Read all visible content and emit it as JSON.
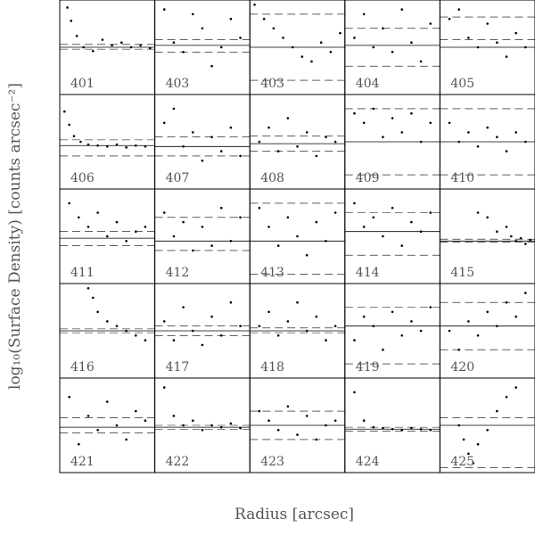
{
  "chart_data": {
    "type": "scatter",
    "xlabel": "Radius [arcsec]",
    "ylabel": "log₁₀(Surface Density) [counts arcsec⁻²]",
    "xlim": [
      0,
      1
    ],
    "ylim": [
      0,
      1
    ],
    "color": "#000000",
    "panels": [
      {
        "label": "401",
        "x": [
          0.08,
          0.12,
          0.18,
          0.25,
          0.35,
          0.45,
          0.55,
          0.65,
          0.75,
          0.85,
          0.95
        ],
        "y": [
          0.92,
          0.78,
          0.62,
          0.5,
          0.46,
          0.58,
          0.52,
          0.55,
          0.5,
          0.52,
          0.49
        ],
        "level": 0.5,
        "band": [
          0.48,
          0.53
        ]
      },
      {
        "label": "403",
        "x": [
          0.1,
          0.2,
          0.3,
          0.4,
          0.5,
          0.6,
          0.7,
          0.8,
          0.9
        ],
        "y": [
          0.9,
          0.55,
          0.45,
          0.85,
          0.7,
          0.3,
          0.5,
          0.8,
          0.6
        ],
        "level": 0.52,
        "band": [
          0.45,
          0.58
        ]
      },
      {
        "label": "403",
        "x": [
          0.05,
          0.15,
          0.25,
          0.35,
          0.45,
          0.55,
          0.65,
          0.75,
          0.85,
          0.95
        ],
        "y": [
          0.95,
          0.8,
          0.7,
          0.6,
          0.5,
          0.4,
          0.35,
          0.55,
          0.45,
          0.65
        ],
        "level": 0.5,
        "band": [
          0.15,
          0.85
        ]
      },
      {
        "label": "404",
        "x": [
          0.1,
          0.2,
          0.3,
          0.4,
          0.5,
          0.6,
          0.7,
          0.8,
          0.9
        ],
        "y": [
          0.6,
          0.85,
          0.5,
          0.7,
          0.45,
          0.9,
          0.55,
          0.35,
          0.75
        ],
        "level": 0.52,
        "band": [
          0.3,
          0.7
        ]
      },
      {
        "label": "405",
        "x": [
          0.1,
          0.2,
          0.3,
          0.4,
          0.5,
          0.6,
          0.7,
          0.8,
          0.9
        ],
        "y": [
          0.8,
          0.9,
          0.6,
          0.5,
          0.75,
          0.55,
          0.4,
          0.65,
          0.5
        ],
        "level": 0.5,
        "band": [
          0.58,
          0.82
        ]
      },
      {
        "label": "406",
        "x": [
          0.05,
          0.1,
          0.15,
          0.22,
          0.3,
          0.4,
          0.5,
          0.6,
          0.7,
          0.8,
          0.9
        ],
        "y": [
          0.82,
          0.68,
          0.56,
          0.5,
          0.47,
          0.46,
          0.45,
          0.47,
          0.44,
          0.46,
          0.45
        ],
        "level": 0.46,
        "band": [
          0.35,
          0.52
        ]
      },
      {
        "label": "407",
        "x": [
          0.1,
          0.2,
          0.3,
          0.4,
          0.5,
          0.6,
          0.7,
          0.8,
          0.9
        ],
        "y": [
          0.7,
          0.85,
          0.45,
          0.6,
          0.3,
          0.55,
          0.4,
          0.65,
          0.35
        ],
        "level": 0.45,
        "band": [
          0.35,
          0.55
        ]
      },
      {
        "label": "408",
        "x": [
          0.1,
          0.2,
          0.3,
          0.4,
          0.5,
          0.6,
          0.7,
          0.8,
          0.9
        ],
        "y": [
          0.5,
          0.65,
          0.4,
          0.75,
          0.45,
          0.6,
          0.35,
          0.55,
          0.5
        ],
        "level": 0.48,
        "band": [
          0.4,
          0.56
        ]
      },
      {
        "label": "409",
        "x": [
          0.1,
          0.2,
          0.3,
          0.4,
          0.5,
          0.6,
          0.7,
          0.8,
          0.9
        ],
        "y": [
          0.8,
          0.7,
          0.85,
          0.55,
          0.75,
          0.6,
          0.8,
          0.5,
          0.7
        ],
        "level": 0.5,
        "band": [
          0.15,
          0.85
        ]
      },
      {
        "label": "410",
        "x": [
          0.1,
          0.2,
          0.3,
          0.4,
          0.5,
          0.6,
          0.7,
          0.8,
          0.9
        ],
        "y": [
          0.7,
          0.5,
          0.6,
          0.45,
          0.65,
          0.55,
          0.4,
          0.6,
          0.5
        ],
        "level": 0.5,
        "band": [
          0.15,
          0.85
        ]
      },
      {
        "label": "411",
        "x": [
          0.1,
          0.2,
          0.3,
          0.4,
          0.5,
          0.6,
          0.7,
          0.8,
          0.9
        ],
        "y": [
          0.85,
          0.7,
          0.6,
          0.75,
          0.5,
          0.65,
          0.45,
          0.55,
          0.6
        ],
        "level": 0.48,
        "band": [
          0.4,
          0.55
        ]
      },
      {
        "label": "412",
        "x": [
          0.1,
          0.2,
          0.3,
          0.4,
          0.5,
          0.6,
          0.7,
          0.8,
          0.9
        ],
        "y": [
          0.75,
          0.5,
          0.65,
          0.35,
          0.6,
          0.4,
          0.8,
          0.45,
          0.7
        ],
        "level": 0.45,
        "band": [
          0.35,
          0.7
        ]
      },
      {
        "label": "413",
        "x": [
          0.1,
          0.2,
          0.3,
          0.4,
          0.5,
          0.6,
          0.7,
          0.8,
          0.9
        ],
        "y": [
          0.8,
          0.6,
          0.4,
          0.7,
          0.5,
          0.3,
          0.65,
          0.45,
          0.75
        ],
        "level": 0.45,
        "band": [
          0.1,
          0.85
        ]
      },
      {
        "label": "414",
        "x": [
          0.1,
          0.2,
          0.3,
          0.4,
          0.5,
          0.6,
          0.7,
          0.8,
          0.9
        ],
        "y": [
          0.85,
          0.6,
          0.7,
          0.5,
          0.8,
          0.4,
          0.65,
          0.55,
          0.75
        ],
        "level": 0.55,
        "band": [
          0.3,
          0.75
        ]
      },
      {
        "label": "415",
        "x": [
          0.4,
          0.5,
          0.6,
          0.7,
          0.75,
          0.8,
          0.85,
          0.9,
          0.95
        ],
        "y": [
          0.75,
          0.7,
          0.55,
          0.6,
          0.5,
          0.45,
          0.48,
          0.42,
          0.46
        ],
        "level": 0.45,
        "band": [
          0.44,
          0.47
        ]
      },
      {
        "label": "416",
        "x": [
          0.3,
          0.35,
          0.4,
          0.5,
          0.6,
          0.7,
          0.8,
          0.9
        ],
        "y": [
          0.95,
          0.85,
          0.7,
          0.6,
          0.55,
          0.5,
          0.45,
          0.4
        ],
        "level": 0.5,
        "band": [
          0.48,
          0.52
        ]
      },
      {
        "label": "417",
        "x": [
          0.1,
          0.2,
          0.3,
          0.4,
          0.5,
          0.6,
          0.7,
          0.8,
          0.9
        ],
        "y": [
          0.6,
          0.4,
          0.75,
          0.5,
          0.35,
          0.65,
          0.45,
          0.8,
          0.55
        ],
        "level": 0.5,
        "band": [
          0.45,
          0.55
        ]
      },
      {
        "label": "418",
        "x": [
          0.1,
          0.2,
          0.3,
          0.4,
          0.5,
          0.6,
          0.7,
          0.8,
          0.9
        ],
        "y": [
          0.55,
          0.7,
          0.45,
          0.6,
          0.8,
          0.5,
          0.65,
          0.4,
          0.55
        ],
        "level": 0.5,
        "band": [
          0.48,
          0.53
        ]
      },
      {
        "label": "419",
        "x": [
          0.1,
          0.2,
          0.3,
          0.4,
          0.5,
          0.6,
          0.7,
          0.8,
          0.9
        ],
        "y": [
          0.4,
          0.65,
          0.55,
          0.3,
          0.7,
          0.45,
          0.6,
          0.5,
          0.75
        ],
        "level": 0.55,
        "band": [
          0.15,
          0.75
        ]
      },
      {
        "label": "420",
        "x": [
          0.1,
          0.2,
          0.3,
          0.4,
          0.5,
          0.6,
          0.7,
          0.8,
          0.9
        ],
        "y": [
          0.5,
          0.3,
          0.6,
          0.45,
          0.7,
          0.55,
          0.8,
          0.65,
          0.9
        ],
        "level": 0.55,
        "band": [
          0.3,
          0.8
        ]
      },
      {
        "label": "421",
        "x": [
          0.1,
          0.2,
          0.3,
          0.4,
          0.5,
          0.6,
          0.7,
          0.8,
          0.9
        ],
        "y": [
          0.8,
          0.3,
          0.6,
          0.45,
          0.75,
          0.5,
          0.35,
          0.65,
          0.55
        ],
        "level": 0.48,
        "band": [
          0.42,
          0.58
        ]
      },
      {
        "label": "422",
        "x": [
          0.1,
          0.2,
          0.3,
          0.4,
          0.5,
          0.6,
          0.7,
          0.8,
          0.9
        ],
        "y": [
          0.9,
          0.6,
          0.5,
          0.55,
          0.45,
          0.5,
          0.48,
          0.52,
          0.47
        ],
        "level": 0.48,
        "band": [
          0.46,
          0.5
        ]
      },
      {
        "label": "423",
        "x": [
          0.1,
          0.2,
          0.3,
          0.4,
          0.5,
          0.6,
          0.7,
          0.8,
          0.9
        ],
        "y": [
          0.65,
          0.55,
          0.45,
          0.7,
          0.4,
          0.6,
          0.35,
          0.5,
          0.55
        ],
        "level": 0.5,
        "band": [
          0.35,
          0.65
        ]
      },
      {
        "label": "424",
        "x": [
          0.1,
          0.2,
          0.3,
          0.4,
          0.5,
          0.6,
          0.7,
          0.8,
          0.9
        ],
        "y": [
          0.85,
          0.55,
          0.48,
          0.47,
          0.46,
          0.45,
          0.47,
          0.46,
          0.45
        ],
        "level": 0.46,
        "band": [
          0.44,
          0.48
        ]
      },
      {
        "label": "425",
        "x": [
          0.2,
          0.25,
          0.3,
          0.35,
          0.4,
          0.5,
          0.6,
          0.7,
          0.8
        ],
        "y": [
          0.5,
          0.35,
          0.2,
          0.1,
          0.3,
          0.45,
          0.65,
          0.8,
          0.9
        ],
        "level": 0.5,
        "band": [
          0.05,
          0.58
        ]
      }
    ]
  }
}
